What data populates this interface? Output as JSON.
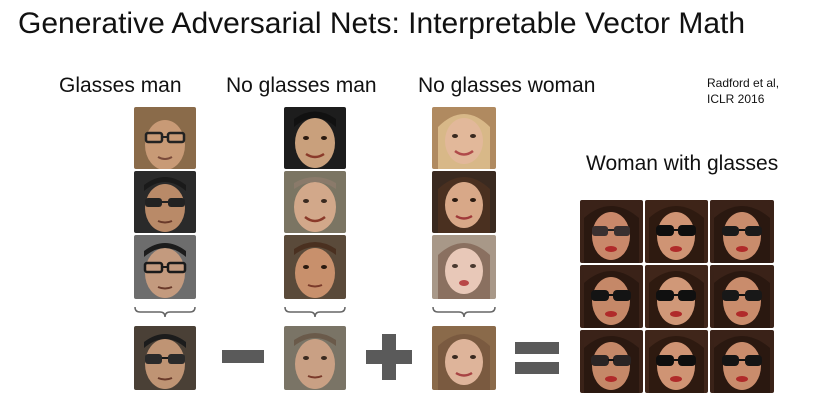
{
  "title": "Generative Adversarial Nets: Interpretable Vector Math",
  "columns": [
    {
      "label": "Glasses man"
    },
    {
      "label": "No glasses man"
    },
    {
      "label": "No glasses woman"
    }
  ],
  "citation": {
    "line1": "Radford et al,",
    "line2": "ICLR 2016"
  },
  "result": {
    "label": "Woman with glasses"
  },
  "operators": [
    "minus",
    "plus",
    "equals"
  ],
  "colors": {
    "operator": "#5a5a5a",
    "background": "#ffffff",
    "text": "#111111"
  }
}
